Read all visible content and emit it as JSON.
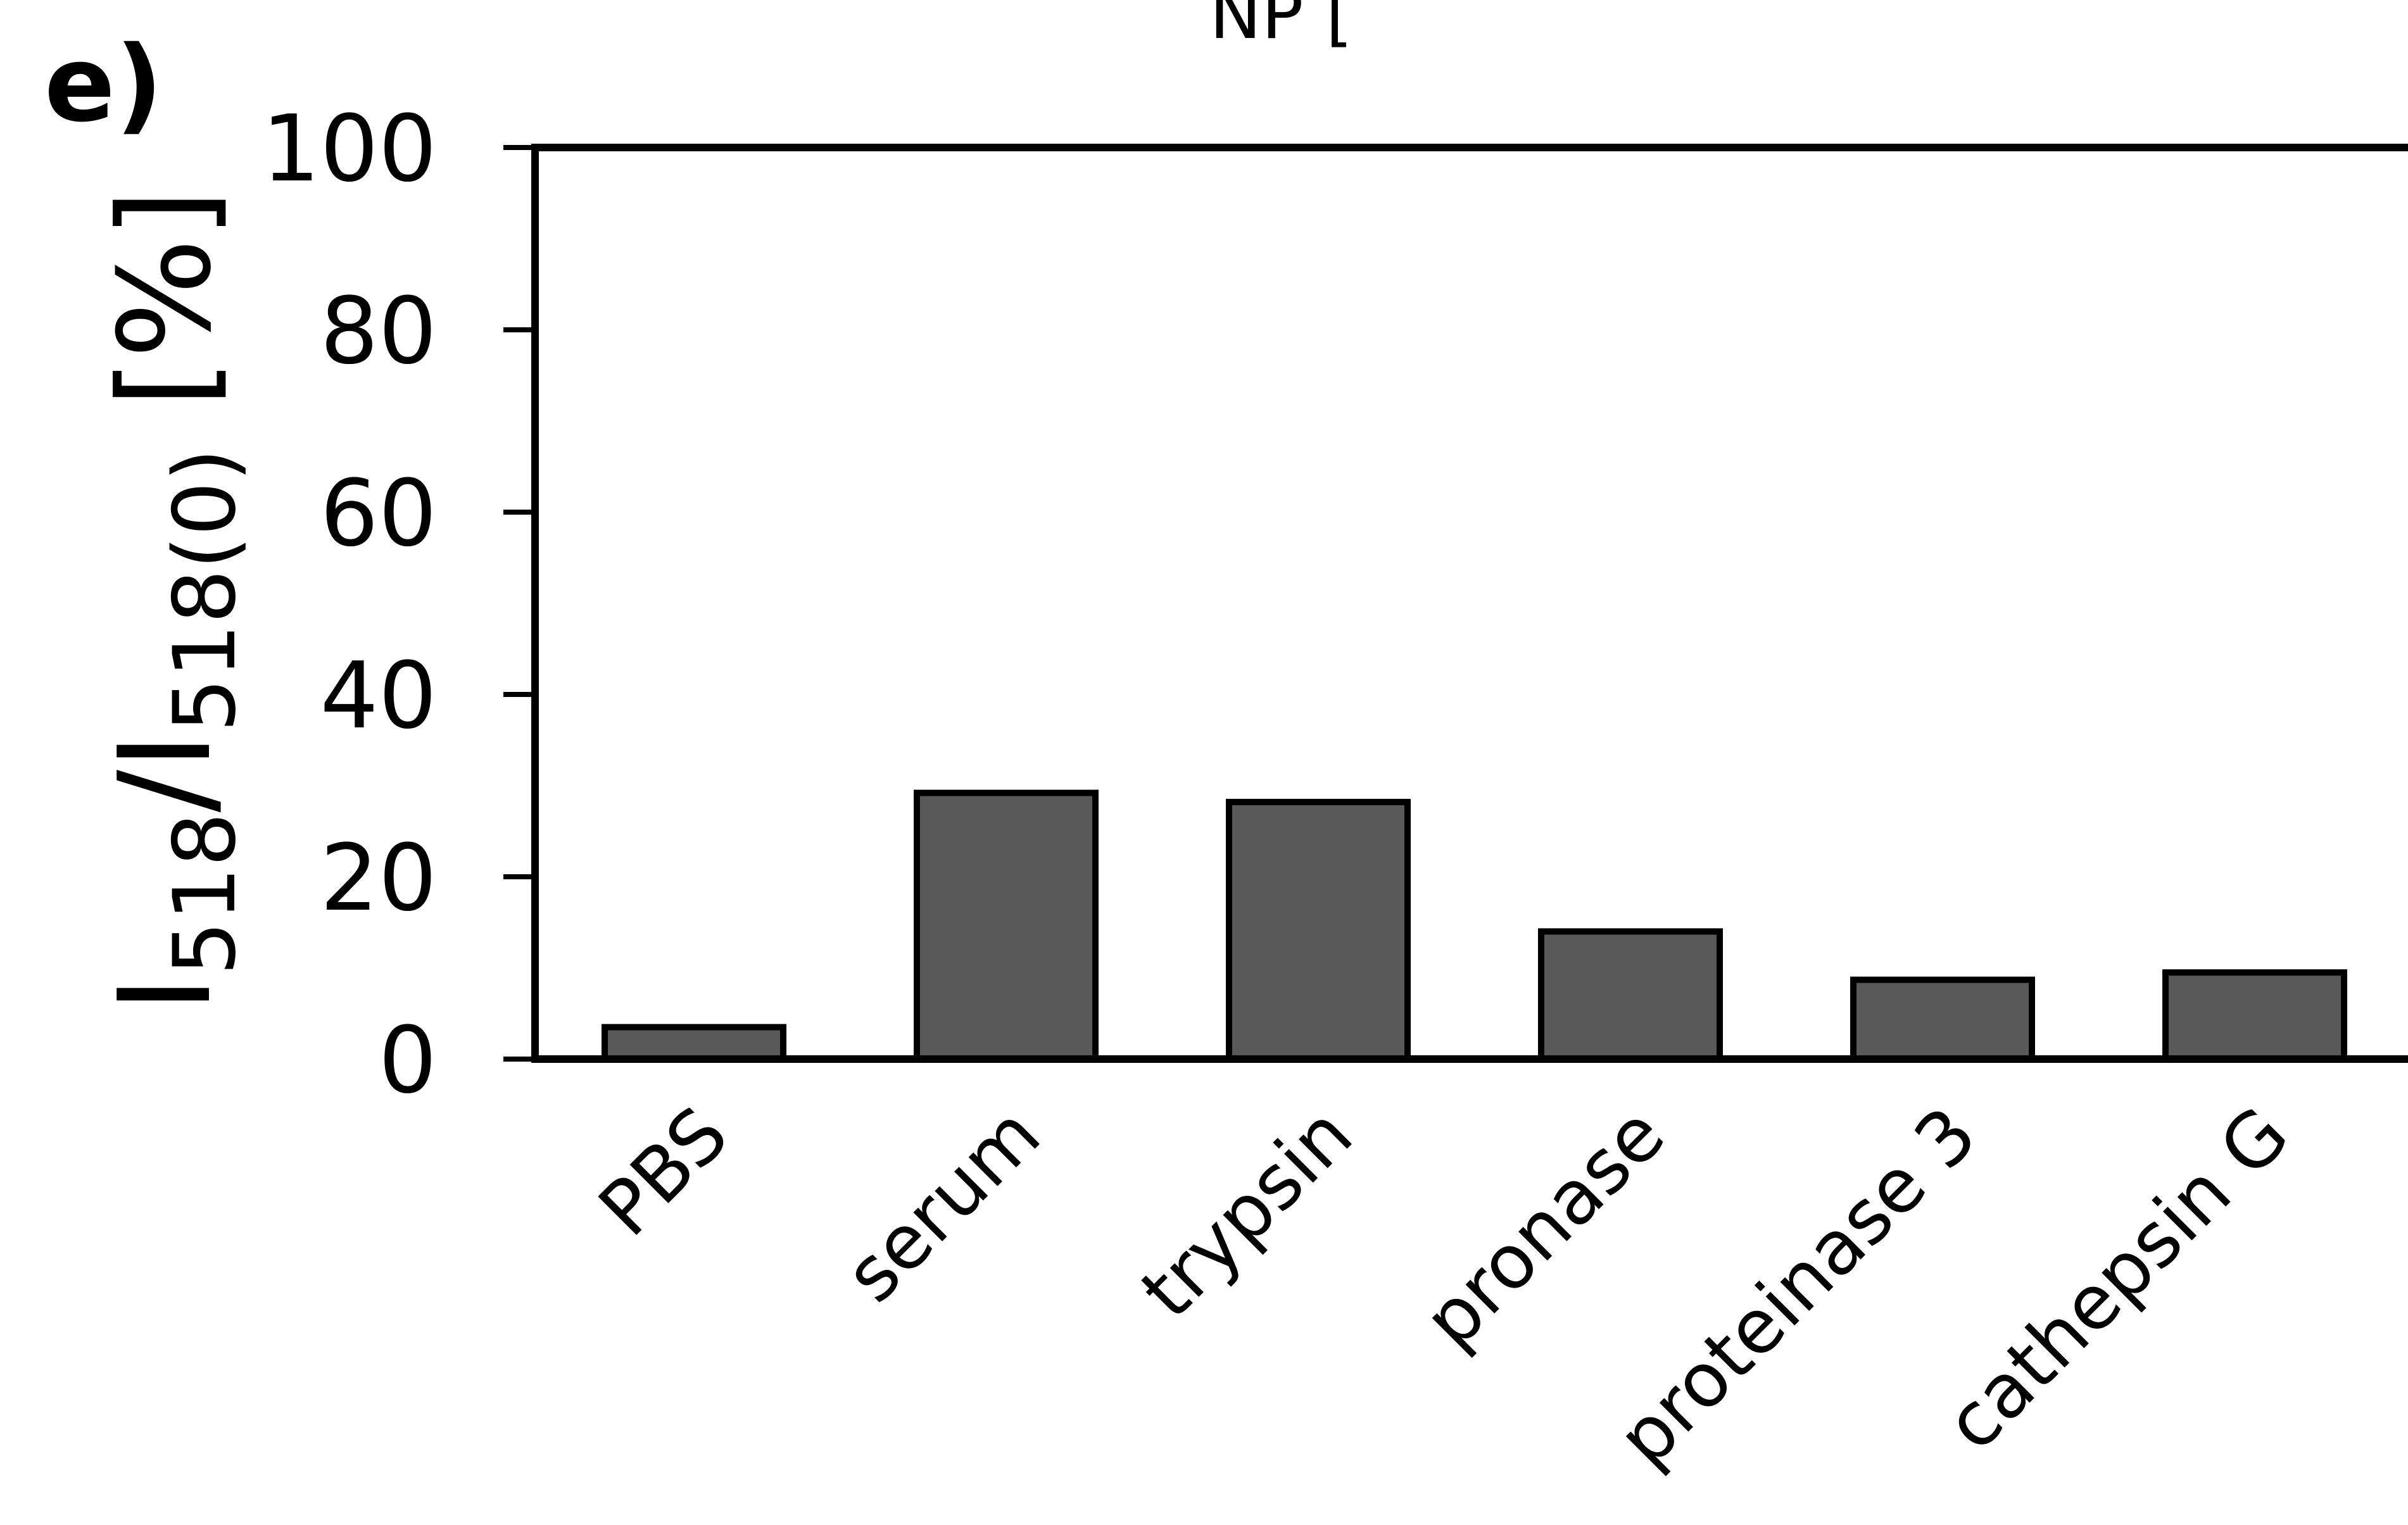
{
  "panel_label": "e)",
  "top_cut_text": "NP [",
  "chart_data": {
    "type": "bar",
    "title": "",
    "xlabel": "",
    "ylabel": {
      "parts": [
        {
          "text": "I",
          "sub": false
        },
        {
          "text": "518",
          "sub": true
        },
        {
          "text": "/I",
          "sub": false
        },
        {
          "text": "518(0)",
          "sub": true
        },
        {
          "text": " [%]",
          "sub": false
        }
      ]
    },
    "ylim": [
      0,
      100
    ],
    "yticks": [
      "0",
      "20",
      "40",
      "60",
      "80",
      "100"
    ],
    "categories": [
      "PBS",
      "serum",
      "trypsin",
      "pronase",
      "proteinase 3",
      "cathepsin G"
    ],
    "values": [
      3.5,
      29.2,
      28.2,
      14.0,
      8.7,
      9.5
    ],
    "bar_color": "#595959",
    "bar_edge_color": "#000000",
    "grid": false,
    "legend": "none"
  }
}
